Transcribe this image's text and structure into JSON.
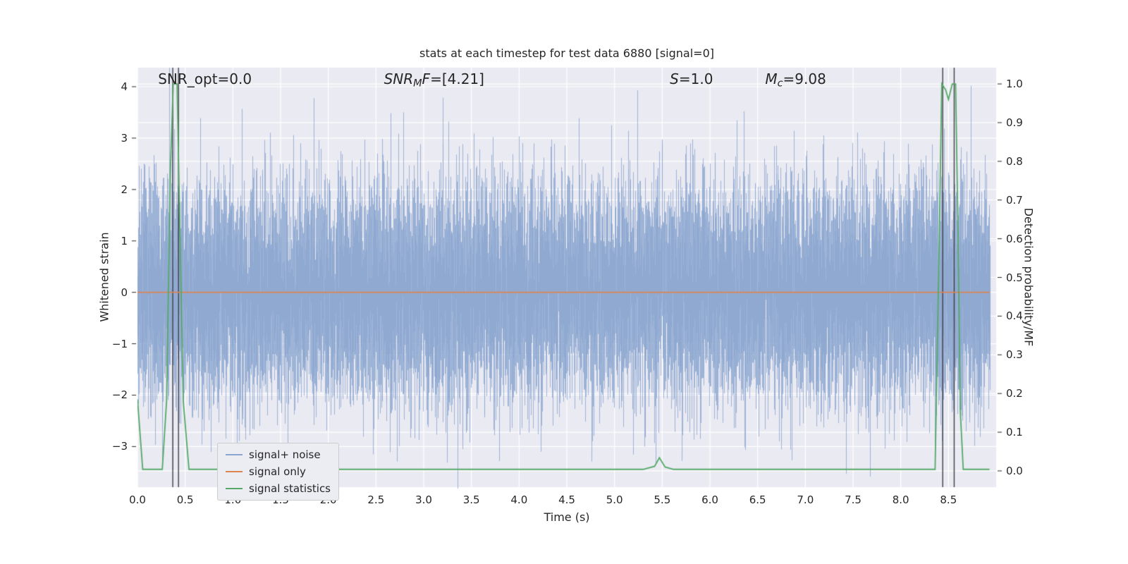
{
  "chart_data": {
    "type": "line",
    "title": "stats at each timestep for test data 6880 [signal=0]",
    "xlabel": "Time (s)",
    "ylabel_left": "Whitened strain",
    "ylabel_right": "Detection probability/MF",
    "xlim": [
      0,
      9.0
    ],
    "ylim_left": [
      -3.79,
      4.37
    ],
    "ylim_right": [
      -0.042,
      1.042
    ],
    "grid": true,
    "xticks": [
      0.0,
      0.5,
      1.0,
      1.5,
      2.0,
      2.5,
      3.0,
      3.5,
      4.0,
      4.5,
      5.0,
      5.5,
      6.0,
      6.5,
      7.0,
      7.5,
      8.0,
      8.5
    ],
    "xtick_labels": [
      "0.0",
      "0.5",
      "1.0",
      "1.5",
      "2.0",
      "2.5",
      "3.0",
      "3.5",
      "4.0",
      "4.5",
      "5.0",
      "5.5",
      "6.0",
      "6.5",
      "7.0",
      "7.5",
      "8.0",
      "8.5"
    ],
    "yticks_left": [
      -3,
      -2,
      -1,
      0,
      1,
      2,
      3,
      4
    ],
    "ytick_labels_left": [
      "−3",
      "−2",
      "−1",
      "0",
      "1",
      "2",
      "3",
      "4"
    ],
    "yticks_right": [
      0.0,
      0.1,
      0.2,
      0.3,
      0.4,
      0.5,
      0.6,
      0.7,
      0.8,
      0.9,
      1.0
    ],
    "ytick_labels_right": [
      "0.0",
      "0.1",
      "0.2",
      "0.3",
      "0.4",
      "0.5",
      "0.6",
      "0.7",
      "0.8",
      "0.9",
      "1.0"
    ],
    "annotations": [
      {
        "x_frac": 0.024,
        "parts": [
          {
            "t": "SNR_opt=0.0"
          }
        ]
      },
      {
        "x_frac": 0.287,
        "parts": [
          {
            "t": "SNR",
            "i": 1
          },
          {
            "t": "M",
            "i": 1,
            "s": 1
          },
          {
            "t": "F",
            "i": 1
          },
          {
            "t": "=[4.21]"
          }
        ]
      },
      {
        "x_frac": 0.62,
        "parts": [
          {
            "t": "S",
            "i": 1
          },
          {
            "t": "=1.0"
          }
        ]
      },
      {
        "x_frac": 0.731,
        "parts": [
          {
            "t": "M",
            "i": 1
          },
          {
            "t": "c",
            "i": 1,
            "s": 1
          },
          {
            "t": "=9.08"
          }
        ]
      }
    ],
    "series": [
      {
        "name": "signal+ noise",
        "kind": "noise_band",
        "axis": "left",
        "color": "#8ba6d0",
        "mean": 0,
        "std": 1,
        "x_start": 0,
        "x_end": 8.93,
        "seed": 6880,
        "samples_per_pixel": 12
      },
      {
        "name": "signal only",
        "kind": "line",
        "axis": "left",
        "color": "#dd8452",
        "points": [
          [
            0,
            0
          ],
          [
            8.93,
            0
          ]
        ]
      },
      {
        "name": "signal statistics",
        "kind": "line",
        "axis": "right",
        "color": "#55a868",
        "points": [
          [
            0,
            0.185
          ],
          [
            0.055,
            0.004
          ],
          [
            0.26,
            0.004
          ],
          [
            0.305,
            0.18
          ],
          [
            0.345,
            0.78
          ],
          [
            0.375,
            1.0
          ],
          [
            0.415,
            1.0
          ],
          [
            0.445,
            0.62
          ],
          [
            0.48,
            0.18
          ],
          [
            0.54,
            0.004
          ],
          [
            5.3,
            0.004
          ],
          [
            5.42,
            0.012
          ],
          [
            5.47,
            0.034
          ],
          [
            5.53,
            0.01
          ],
          [
            5.62,
            0.004
          ],
          [
            8.36,
            0.004
          ],
          [
            8.4,
            0.55
          ],
          [
            8.43,
            1.0
          ],
          [
            8.47,
            0.985
          ],
          [
            8.5,
            0.96
          ],
          [
            8.54,
            1.0
          ],
          [
            8.575,
            1.0
          ],
          [
            8.6,
            0.62
          ],
          [
            8.625,
            0.15
          ],
          [
            8.655,
            0.004
          ],
          [
            8.93,
            0.004
          ]
        ]
      }
    ],
    "vlines": {
      "color": "#3d3d47",
      "positions": [
        0.37,
        0.43,
        8.44,
        8.56
      ]
    },
    "legend": {
      "items": [
        {
          "label": "signal+ noise",
          "color": "#8ba6d0"
        },
        {
          "label": "signal only",
          "color": "#dd8452"
        },
        {
          "label": "signal statistics",
          "color": "#55a868"
        }
      ]
    },
    "colors": {
      "plot_bg": "#eaeaf2",
      "grid": "#ffffff",
      "text": "#262626",
      "tick_mark": "#262626",
      "legend_bg": "#ececf3",
      "legend_border": "#cccccc"
    }
  }
}
